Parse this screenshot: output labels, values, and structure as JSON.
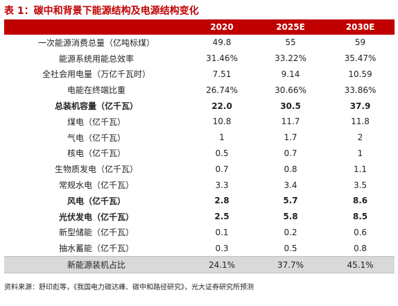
{
  "title": "表 1：碳中和背景下能源结构及电源结构变化",
  "table": {
    "headers": [
      "",
      "2020",
      "2025E",
      "2030E"
    ],
    "rows": [
      {
        "label": "一次能源消费总量（亿吨标煤）",
        "v2020": "49.8",
        "v2025": "55",
        "v2030": "59"
      },
      {
        "label": "能源系统用能总效率",
        "v2020": "31.46%",
        "v2025": "33.22%",
        "v2030": "35.47%"
      },
      {
        "label": "全社会用电量（万亿千瓦时）",
        "v2020": "7.51",
        "v2025": "9.14",
        "v2030": "10.59"
      },
      {
        "label": "电能在终端比重",
        "v2020": "26.74%",
        "v2025": "30.66%",
        "v2030": "33.86%"
      },
      {
        "label": "总装机容量（亿千瓦）",
        "v2020": "22.0",
        "v2025": "30.5",
        "v2030": "37.9"
      },
      {
        "label": "煤电（亿千瓦）",
        "v2020": "10.8",
        "v2025": "11.7",
        "v2030": "11.8"
      },
      {
        "label": "气电（亿千瓦）",
        "v2020": "1",
        "v2025": "1.7",
        "v2030": "2"
      },
      {
        "label": "核电（亿千瓦）",
        "v2020": "0.5",
        "v2025": "0.7",
        "v2030": "1"
      },
      {
        "label": "生物质发电（亿千瓦）",
        "v2020": "0.7",
        "v2025": "0.8",
        "v2030": "1.1"
      },
      {
        "label": "常规水电（亿千瓦）",
        "v2020": "3.3",
        "v2025": "3.4",
        "v2030": "3.5"
      },
      {
        "label": "风电（亿千瓦）",
        "v2020": "2.8",
        "v2025": "5.7",
        "v2030": "8.6"
      },
      {
        "label": "光伏发电（亿千瓦）",
        "v2020": "2.5",
        "v2025": "5.8",
        "v2030": "8.5"
      },
      {
        "label": "新型储能（亿千瓦）",
        "v2020": "0.1",
        "v2025": "0.2",
        "v2030": "0.6"
      },
      {
        "label": "抽水蓄能（亿千瓦）",
        "v2020": "0.3",
        "v2025": "0.5",
        "v2030": "0.8"
      },
      {
        "label": "新能源装机占比",
        "v2020": "24.1%",
        "v2025": "37.7%",
        "v2030": "45.1%"
      }
    ]
  },
  "source": "资料来源：舒印彪等，《我国电力碳达峰、碳中和路径研究》，光大证券研究所预测",
  "colors": {
    "header_bg": "#c00000",
    "header_text": "#ffffff",
    "title": "#c00000",
    "shaded_row": "#d9d9d9"
  }
}
